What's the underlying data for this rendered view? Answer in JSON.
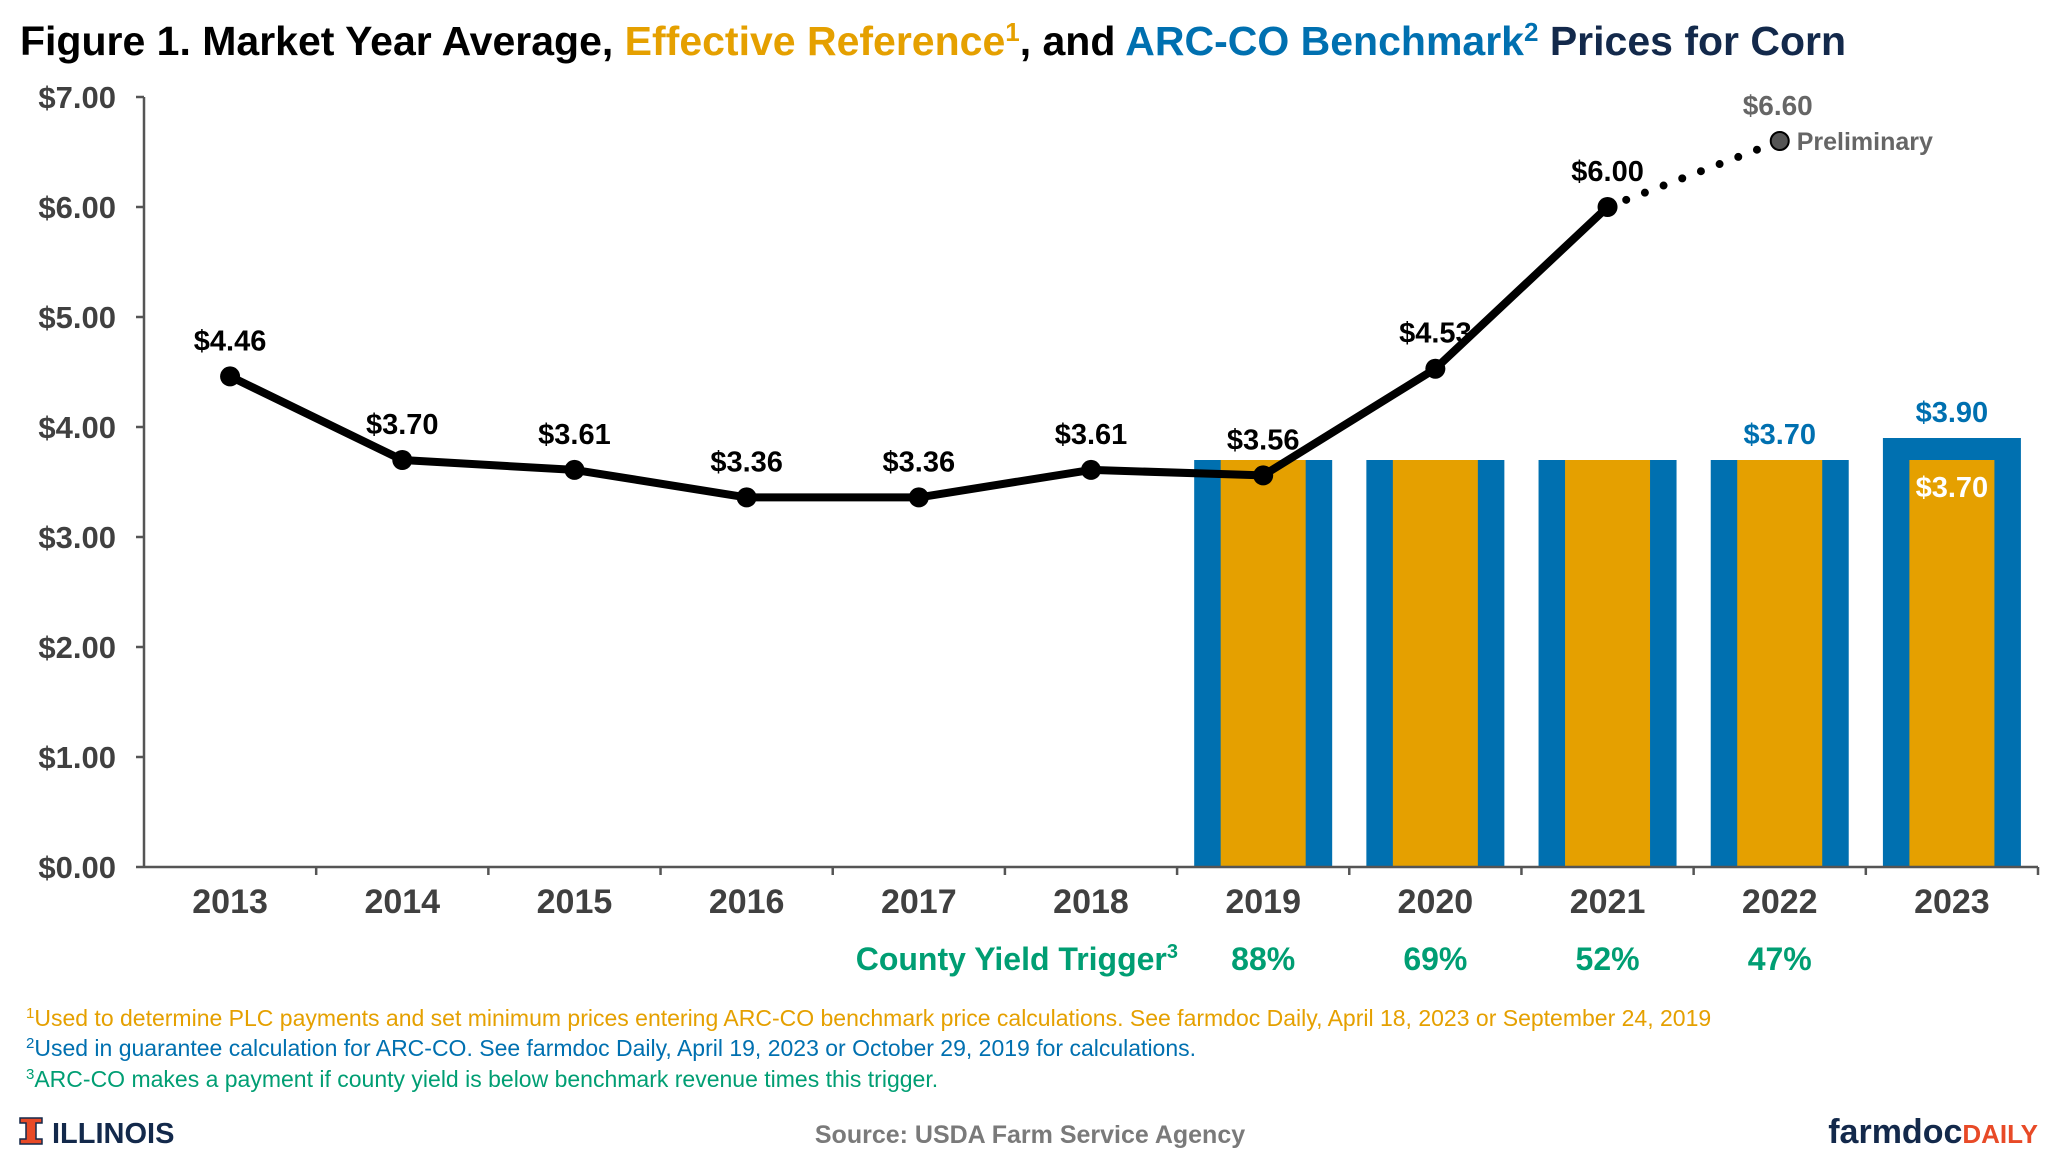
{
  "title": {
    "part1": "Figure 1. Market Year Average, ",
    "part2": "Effective Reference",
    "sup2": "1",
    "part3": ", and ",
    "part4": "ARC-CO Benchmark",
    "sup4": "2",
    "part5": " Prices for Corn"
  },
  "colors": {
    "black": "#000000",
    "orange": "#E5A000",
    "blue": "#0070B0",
    "green": "#009E73",
    "gray": "#666666",
    "navy": "#13294B",
    "illinois_orange": "#E84A27"
  },
  "chart_data": {
    "type": "bar+line",
    "categories": [
      "2013",
      "2014",
      "2015",
      "2016",
      "2017",
      "2018",
      "2019",
      "2020",
      "2021",
      "2022",
      "2023"
    ],
    "ylim": [
      0,
      7
    ],
    "yticks": [
      "$0.00",
      "$1.00",
      "$2.00",
      "$3.00",
      "$4.00",
      "$5.00",
      "$6.00",
      "$7.00"
    ],
    "grid": false,
    "market_year_average": {
      "values": [
        4.46,
        3.7,
        3.61,
        3.36,
        3.36,
        3.61,
        3.56,
        4.53,
        6.0
      ],
      "labels": [
        "$4.46",
        "$3.70",
        "$3.61",
        "$3.36",
        "$3.36",
        "$3.61",
        "$3.56",
        "$4.53",
        "$6.00"
      ]
    },
    "preliminary": {
      "category": "2022",
      "value": 6.6,
      "label": "$6.60",
      "note": "Preliminary"
    },
    "arc_co_benchmark": {
      "categories": [
        "2019",
        "2020",
        "2021",
        "2022",
        "2023"
      ],
      "values": [
        3.7,
        3.7,
        3.7,
        3.7,
        3.9
      ],
      "labels": {
        "2022": "$3.70",
        "2023": "$3.90"
      }
    },
    "effective_reference": {
      "categories": [
        "2019",
        "2020",
        "2021",
        "2022",
        "2023"
      ],
      "values": [
        3.7,
        3.7,
        3.7,
        3.7,
        3.7
      ],
      "labels": {
        "2023": "$3.70"
      }
    }
  },
  "trigger": {
    "label": "County Yield Trigger",
    "sup": "3",
    "values": [
      {
        "year": "2019",
        "value": "88%"
      },
      {
        "year": "2020",
        "value": "69%"
      },
      {
        "year": "2021",
        "value": "52%"
      },
      {
        "year": "2022",
        "value": "47%"
      }
    ]
  },
  "footnotes": [
    {
      "sup": "1",
      "text": "Used to determine PLC payments and set minimum prices entering ARC-CO benchmark price calculations. See farmdoc Daily, April 18, 2023 or September 24, 2019"
    },
    {
      "sup": "2",
      "text": "Used in guarantee calculation for ARC-CO. See farmdoc Daily, April 19, 2023 or October 29, 2019 for calculations."
    },
    {
      "sup": "3",
      "text": "ARC-CO makes a payment if county yield is below benchmark revenue times this trigger."
    }
  ],
  "source": "Source: USDA Farm Service Agency",
  "logos": {
    "illinois": "ILLINOIS",
    "farmdoc1": "farmdoc",
    "farmdoc2": "DAILY"
  }
}
